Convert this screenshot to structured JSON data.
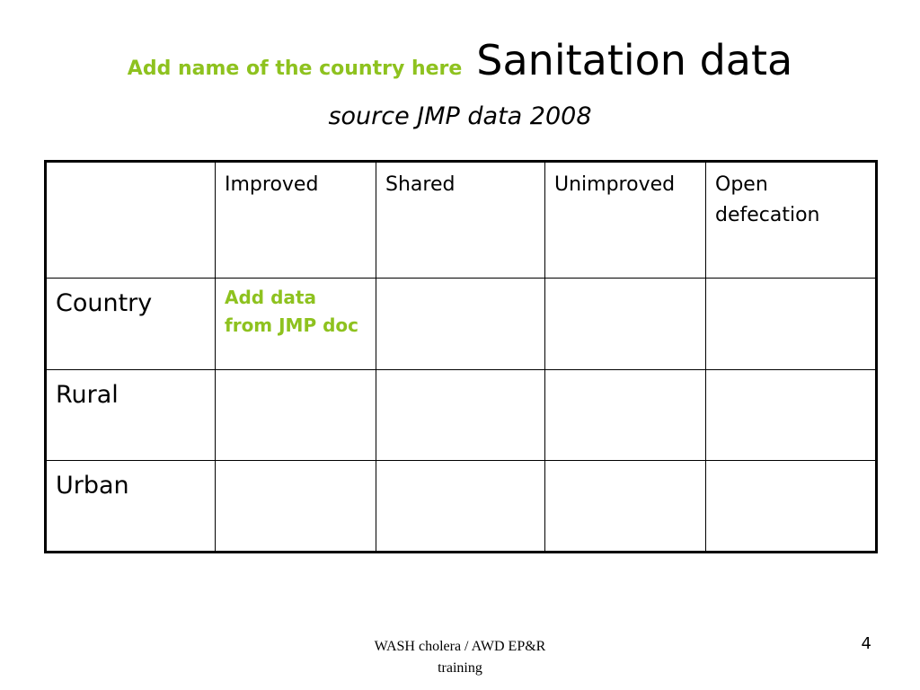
{
  "slide": {
    "title_note": "Add name of the country here",
    "title": "Sanitation data",
    "subtitle": "source JMP data 2008",
    "accent_color": "#8ec21f",
    "page_number": "4",
    "footer_line1": "WASH cholera / AWD EP&R",
    "footer_line2": "training"
  },
  "table": {
    "headers": [
      "",
      "Improved",
      "Shared",
      "Unimproved",
      "Open defecation"
    ],
    "rows": [
      {
        "label": "Country",
        "cells": [
          "Add data from JMP doc",
          "",
          "",
          ""
        ]
      },
      {
        "label": "Rural",
        "cells": [
          "",
          "",
          "",
          ""
        ]
      },
      {
        "label": "Urban",
        "cells": [
          "",
          "",
          "",
          ""
        ]
      }
    ]
  }
}
